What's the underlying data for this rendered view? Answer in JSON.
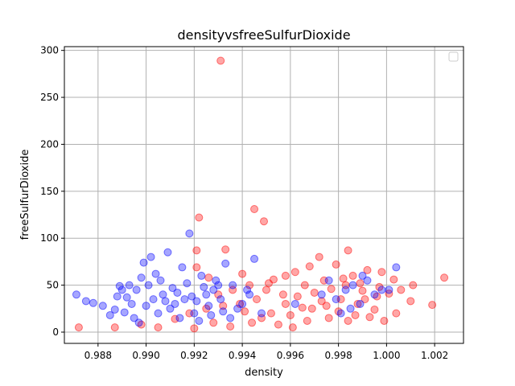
{
  "chart_data": {
    "type": "scatter",
    "title": "densityvsfreeSulfurDioxide",
    "xlabel": "density",
    "ylabel": "freeSulfurDioxide",
    "xlim": [
      0.9866,
      1.0032
    ],
    "ylim": [
      -12,
      304
    ],
    "xticks": [
      "0.988",
      "0.990",
      "0.992",
      "0.994",
      "0.996",
      "0.998",
      "1.000",
      "1.002"
    ],
    "xtick_values": [
      0.988,
      0.99,
      0.992,
      0.994,
      0.996,
      0.998,
      1.0,
      1.002
    ],
    "yticks": [
      "0",
      "50",
      "100",
      "150",
      "200",
      "250",
      "300"
    ],
    "ytick_values": [
      0,
      50,
      100,
      150,
      200,
      250,
      300
    ],
    "grid": true,
    "legend": "upper-right (empty)",
    "series": [
      {
        "color": "#ff0000",
        "alpha": 0.35,
        "points": [
          [
            0.9931,
            289
          ],
          [
            0.9945,
            131
          ],
          [
            0.9949,
            118
          ],
          [
            0.9922,
            122
          ],
          [
            0.9933,
            88
          ],
          [
            0.9921,
            87
          ],
          [
            0.9984,
            87
          ],
          [
            0.9921,
            69
          ],
          [
            0.9926,
            58
          ],
          [
            0.994,
            62
          ],
          [
            0.9953,
            56
          ],
          [
            0.9962,
            64
          ],
          [
            0.9968,
            70
          ],
          [
            0.9972,
            80
          ],
          [
            0.9979,
            72
          ],
          [
            0.9986,
            60
          ],
          [
            0.9992,
            66
          ],
          [
            0.9998,
            64
          ],
          [
            1.0003,
            56
          ],
          [
            1.0011,
            50
          ],
          [
            1.0024,
            58
          ],
          [
            1.0019,
            29
          ],
          [
            1.001,
            33
          ],
          [
            1.0004,
            20
          ],
          [
            0.9995,
            24
          ],
          [
            0.9988,
            30
          ],
          [
            0.9981,
            35
          ],
          [
            0.9975,
            28
          ],
          [
            0.9967,
            12
          ],
          [
            0.996,
            18
          ],
          [
            0.9955,
            8
          ],
          [
            0.9948,
            15
          ],
          [
            0.9941,
            22
          ],
          [
            0.9935,
            6
          ],
          [
            0.9928,
            10
          ],
          [
            0.992,
            4
          ],
          [
            0.9912,
            14
          ],
          [
            0.9905,
            5
          ],
          [
            0.9898,
            8
          ],
          [
            0.9887,
            5
          ],
          [
            0.9872,
            5
          ],
          [
            0.995,
            45
          ],
          [
            0.9957,
            40
          ],
          [
            0.9963,
            38
          ],
          [
            0.997,
            42
          ],
          [
            0.9977,
            46
          ],
          [
            0.9983,
            50
          ],
          [
            0.999,
            44
          ],
          [
            0.9996,
            38
          ],
          [
            1.0001,
            41
          ],
          [
            0.9946,
            35
          ],
          [
            0.9939,
            30
          ],
          [
            0.9932,
            28
          ],
          [
            0.9925,
            25
          ],
          [
            0.9918,
            20
          ],
          [
            0.9943,
            50
          ],
          [
            0.9951,
            52
          ],
          [
            0.9958,
            30
          ],
          [
            0.9965,
            26
          ],
          [
            0.9973,
            33
          ],
          [
            0.998,
            22
          ],
          [
            0.9987,
            18
          ],
          [
            0.9993,
            16
          ],
          [
            0.9999,
            12
          ],
          [
            0.9958,
            60
          ],
          [
            0.9966,
            50
          ],
          [
            0.9974,
            55
          ],
          [
            0.9982,
            57
          ],
          [
            0.9989,
            52
          ],
          [
            0.9997,
            48
          ],
          [
            0.9936,
            45
          ],
          [
            0.993,
            40
          ],
          [
            0.9944,
            10
          ],
          [
            0.9952,
            20
          ],
          [
            0.9961,
            5
          ],
          [
            0.9969,
            25
          ],
          [
            0.9976,
            15
          ],
          [
            0.9984,
            12
          ],
          [
            0.9991,
            35
          ],
          [
            1.0006,
            45
          ]
        ]
      },
      {
        "color": "#0000ff",
        "alpha": 0.35,
        "points": [
          [
            0.9871,
            40
          ],
          [
            0.9875,
            33
          ],
          [
            0.9878,
            31
          ],
          [
            0.9882,
            28
          ],
          [
            0.9885,
            18
          ],
          [
            0.9887,
            24
          ],
          [
            0.9889,
            49
          ],
          [
            0.9892,
            37
          ],
          [
            0.9894,
            30
          ],
          [
            0.9896,
            45
          ],
          [
            0.9898,
            58
          ],
          [
            0.9899,
            74
          ],
          [
            0.9902,
            80
          ],
          [
            0.9904,
            62
          ],
          [
            0.9906,
            55
          ],
          [
            0.9909,
            85
          ],
          [
            0.9911,
            47
          ],
          [
            0.9913,
            42
          ],
          [
            0.9915,
            69
          ],
          [
            0.9918,
            105
          ],
          [
            0.9919,
            38
          ],
          [
            0.9921,
            33
          ],
          [
            0.9923,
            60
          ],
          [
            0.9926,
            28
          ],
          [
            0.9928,
            45
          ],
          [
            0.9931,
            35
          ],
          [
            0.9933,
            73
          ],
          [
            0.9936,
            50
          ],
          [
            0.9938,
            25
          ],
          [
            0.994,
            30
          ],
          [
            0.9943,
            40
          ],
          [
            0.9945,
            78
          ],
          [
            0.9948,
            20
          ],
          [
            0.9891,
            21
          ],
          [
            0.9895,
            15
          ],
          [
            0.9897,
            10
          ],
          [
            0.99,
            28
          ],
          [
            0.9903,
            35
          ],
          [
            0.9905,
            20
          ],
          [
            0.9907,
            40
          ],
          [
            0.991,
            25
          ],
          [
            0.9912,
            30
          ],
          [
            0.9914,
            15
          ],
          [
            0.9916,
            35
          ],
          [
            0.992,
            20
          ],
          [
            0.9922,
            12
          ],
          [
            0.9925,
            40
          ],
          [
            0.9927,
            18
          ],
          [
            0.993,
            50
          ],
          [
            0.9932,
            22
          ],
          [
            0.9888,
            38
          ],
          [
            0.989,
            45
          ],
          [
            0.9893,
            50
          ],
          [
            0.9901,
            50
          ],
          [
            0.9908,
            33
          ],
          [
            0.9917,
            52
          ],
          [
            0.9924,
            48
          ],
          [
            0.9929,
            55
          ],
          [
            0.9935,
            15
          ],
          [
            0.9942,
            45
          ],
          [
            0.9973,
            40
          ],
          [
            0.9979,
            35
          ],
          [
            0.9983,
            45
          ],
          [
            0.9986,
            50
          ],
          [
            0.9989,
            30
          ],
          [
            0.9992,
            55
          ],
          [
            0.9995,
            40
          ],
          [
            0.9998,
            45
          ],
          [
            1.0004,
            69
          ],
          [
            1.0001,
            45
          ],
          [
            0.9976,
            55
          ],
          [
            0.9981,
            20
          ],
          [
            0.9985,
            25
          ],
          [
            0.999,
            60
          ],
          [
            0.9962,
            30
          ]
        ]
      }
    ]
  }
}
